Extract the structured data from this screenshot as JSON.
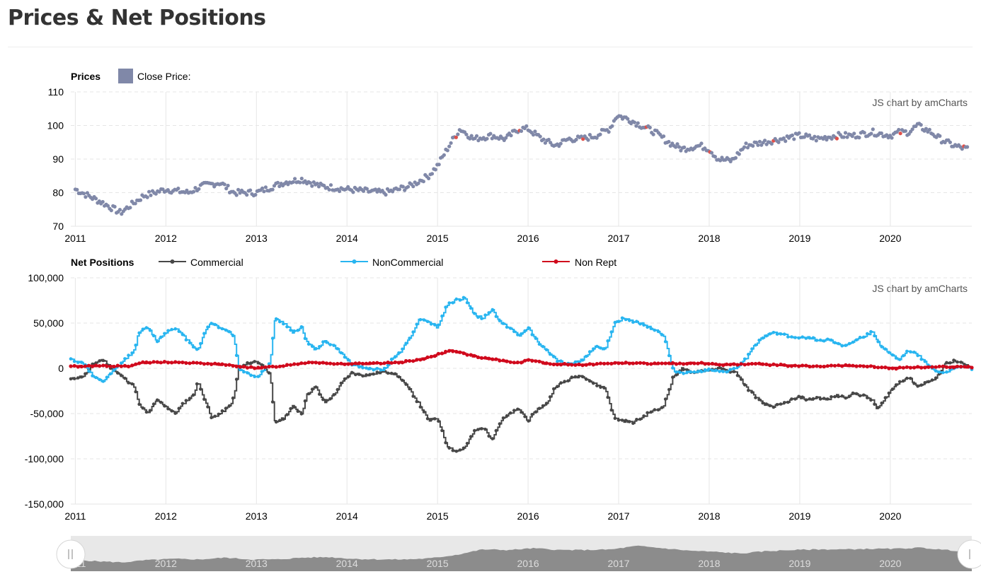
{
  "page": {
    "title": "Prices & Net Positions"
  },
  "credit": "JS chart by amCharts",
  "colors": {
    "price": "#8088a8",
    "price_alt": "#e0504a",
    "commercial": "#474747",
    "noncommercial": "#28b5f0",
    "nonrept": "#d0091c",
    "scroll_fill": "#8c8c8c",
    "scroll_bg": "#e8e8e8"
  },
  "chart_data": [
    {
      "type": "scatter",
      "title": "Prices",
      "legend": {
        "placement": "top-left",
        "entries": [
          "Close Price:"
        ]
      },
      "x_ticks": [
        "2011",
        "2012",
        "2013",
        "2014",
        "2015",
        "2016",
        "2017",
        "2018",
        "2019",
        "2020"
      ],
      "y_ticks": [
        "110",
        "100",
        "90",
        "80",
        "70"
      ],
      "ylim": [
        70,
        110
      ],
      "xlim": [
        2010.95,
        2020.9
      ],
      "grid": true,
      "series": [
        {
          "name": "Close Price:",
          "x": [
            2011.0,
            2011.3,
            2011.5,
            2011.6,
            2011.75,
            2012.0,
            2012.25,
            2012.4,
            2012.6,
            2012.75,
            2013.0,
            2013.1,
            2013.3,
            2013.5,
            2013.7,
            2014.0,
            2014.2,
            2014.4,
            2014.5,
            2014.7,
            2014.9,
            2015.0,
            2015.15,
            2015.25,
            2015.4,
            2015.6,
            2015.75,
            2015.9,
            2016.0,
            2016.15,
            2016.3,
            2016.45,
            2016.6,
            2016.75,
            2016.9,
            2016.98,
            2017.1,
            2017.25,
            2017.4,
            2017.55,
            2017.7,
            2017.9,
            2018.0,
            2018.1,
            2018.25,
            2018.4,
            2018.6,
            2018.8,
            2019.0,
            2019.2,
            2019.4,
            2019.6,
            2019.8,
            2020.0,
            2020.1,
            2020.2,
            2020.3,
            2020.45,
            2020.55,
            2020.7,
            2020.85
          ],
          "y": [
            81,
            77,
            74,
            76,
            79,
            81,
            80,
            82,
            83,
            80,
            80,
            81,
            83,
            84,
            82,
            81,
            80.5,
            80,
            80.5,
            82,
            85,
            88,
            95,
            99,
            96,
            97,
            96,
            99,
            99,
            96,
            94,
            96,
            96,
            97,
            99,
            103,
            102,
            100,
            98,
            95,
            93,
            94,
            93,
            90,
            89.5,
            94,
            95,
            96,
            97,
            96,
            97,
            97,
            98,
            97,
            98,
            98,
            100,
            98,
            96,
            94,
            93
          ]
        }
      ]
    },
    {
      "type": "line",
      "title": "Net Positions",
      "legend": {
        "placement": "top-left",
        "entries": [
          "Commercial",
          "NonCommercial",
          "Non Rept"
        ]
      },
      "x_ticks": [
        "2011",
        "2012",
        "2013",
        "2014",
        "2015",
        "2016",
        "2017",
        "2018",
        "2019",
        "2020"
      ],
      "y_ticks": [
        "100,000",
        "50,000",
        "0",
        "-50,000",
        "-100,000",
        "-150,000"
      ],
      "ylim": [
        -150000,
        100000
      ],
      "xlim": [
        2010.95,
        2020.9
      ],
      "grid": true,
      "series": [
        {
          "name": "Commercial",
          "x": [
            2010.95,
            2011.1,
            2011.2,
            2011.3,
            2011.4,
            2011.5,
            2011.55,
            2011.65,
            2011.7,
            2011.8,
            2011.9,
            2012.0,
            2012.1,
            2012.2,
            2012.3,
            2012.35,
            2012.45,
            2012.5,
            2012.6,
            2012.7,
            2012.75,
            2012.8,
            2012.9,
            2013.0,
            2013.1,
            2013.15,
            2013.2,
            2013.3,
            2013.4,
            2013.5,
            2013.55,
            2013.65,
            2013.75,
            2013.85,
            2013.95,
            2014.05,
            2014.2,
            2014.4,
            2014.5,
            2014.6,
            2014.7,
            2014.8,
            2014.9,
            2015.0,
            2015.1,
            2015.2,
            2015.3,
            2015.4,
            2015.5,
            2015.6,
            2015.7,
            2015.8,
            2015.9,
            2016.0,
            2016.1,
            2016.2,
            2016.3,
            2016.4,
            2016.5,
            2016.6,
            2016.7,
            2016.75,
            2016.85,
            2016.95,
            2017.05,
            2017.15,
            2017.25,
            2017.35,
            2017.45,
            2017.5,
            2017.6,
            2017.7,
            2017.8,
            2017.9,
            2018.0,
            2018.1,
            2018.2,
            2018.3,
            2018.4,
            2018.5,
            2018.6,
            2018.7,
            2018.8,
            2018.9,
            2019.0,
            2019.1,
            2019.2,
            2019.3,
            2019.4,
            2019.5,
            2019.6,
            2019.7,
            2019.8,
            2019.85,
            2019.9,
            2020.0,
            2020.1,
            2020.2,
            2020.3,
            2020.4,
            2020.5,
            2020.6,
            2020.7,
            2020.8,
            2020.9
          ],
          "y": [
            -12000,
            -8000,
            5000,
            10000,
            0,
            -8000,
            -12000,
            -20000,
            -40000,
            -50000,
            -35000,
            -42000,
            -50000,
            -38000,
            -30000,
            -15000,
            -40000,
            -55000,
            -50000,
            -42000,
            -32000,
            0,
            5000,
            8000,
            0,
            -8000,
            -60000,
            -55000,
            -42000,
            -50000,
            -30000,
            -20000,
            -38000,
            -30000,
            -15000,
            -5000,
            -8000,
            -4000,
            -5000,
            -12000,
            -25000,
            -40000,
            -58000,
            -55000,
            -85000,
            -92000,
            -88000,
            -70000,
            -65000,
            -78000,
            -58000,
            -50000,
            -45000,
            -58000,
            -45000,
            -40000,
            -20000,
            -15000,
            -10000,
            -8000,
            -15000,
            -18000,
            -22000,
            -55000,
            -58000,
            -60000,
            -55000,
            -48000,
            -45000,
            -40000,
            -10000,
            0,
            -5000,
            -3000,
            -2000,
            0,
            -3000,
            -5000,
            -20000,
            -30000,
            -40000,
            -42000,
            -40000,
            -35000,
            -32000,
            -35000,
            -32000,
            -35000,
            -30000,
            -32000,
            -28000,
            -30000,
            -35000,
            -45000,
            -40000,
            -25000,
            -15000,
            -10000,
            -20000,
            -15000,
            -12000,
            5000,
            8000,
            5000,
            0
          ]
        },
        {
          "name": "NonCommercial",
          "x": [
            2010.95,
            2011.1,
            2011.2,
            2011.3,
            2011.4,
            2011.5,
            2011.55,
            2011.65,
            2011.7,
            2011.8,
            2011.9,
            2012.0,
            2012.1,
            2012.2,
            2012.3,
            2012.35,
            2012.45,
            2012.5,
            2012.6,
            2012.7,
            2012.75,
            2012.8,
            2012.9,
            2013.0,
            2013.1,
            2013.15,
            2013.2,
            2013.3,
            2013.4,
            2013.5,
            2013.55,
            2013.65,
            2013.75,
            2013.85,
            2013.95,
            2014.05,
            2014.2,
            2014.4,
            2014.5,
            2014.6,
            2014.7,
            2014.8,
            2014.9,
            2015.0,
            2015.1,
            2015.2,
            2015.3,
            2015.4,
            2015.5,
            2015.6,
            2015.7,
            2015.8,
            2015.9,
            2016.0,
            2016.1,
            2016.2,
            2016.3,
            2016.4,
            2016.5,
            2016.6,
            2016.7,
            2016.75,
            2016.85,
            2016.95,
            2017.05,
            2017.15,
            2017.25,
            2017.35,
            2017.45,
            2017.5,
            2017.6,
            2017.7,
            2017.8,
            2017.9,
            2018.0,
            2018.1,
            2018.2,
            2018.3,
            2018.4,
            2018.5,
            2018.6,
            2018.7,
            2018.8,
            2018.9,
            2019.0,
            2019.1,
            2019.2,
            2019.3,
            2019.4,
            2019.5,
            2019.6,
            2019.7,
            2019.8,
            2019.85,
            2019.9,
            2020.0,
            2020.1,
            2020.2,
            2020.3,
            2020.4,
            2020.5,
            2020.6,
            2020.7,
            2020.8,
            2020.9
          ],
          "y": [
            10000,
            5000,
            -10000,
            -15000,
            -5000,
            5000,
            10000,
            20000,
            40000,
            45000,
            30000,
            40000,
            45000,
            35000,
            25000,
            20000,
            45000,
            50000,
            45000,
            40000,
            35000,
            0,
            -5000,
            -10000,
            0,
            5000,
            55000,
            50000,
            40000,
            45000,
            30000,
            20000,
            30000,
            25000,
            15000,
            5000,
            0,
            -2000,
            10000,
            20000,
            35000,
            55000,
            52000,
            45000,
            70000,
            75000,
            78000,
            60000,
            55000,
            65000,
            50000,
            45000,
            35000,
            45000,
            30000,
            20000,
            10000,
            5000,
            5000,
            10000,
            20000,
            25000,
            20000,
            50000,
            55000,
            52000,
            50000,
            45000,
            40000,
            35000,
            -2000,
            -5000,
            -4000,
            -3000,
            -2000,
            -4000,
            -3000,
            0,
            10000,
            25000,
            35000,
            40000,
            38000,
            35000,
            33000,
            35000,
            30000,
            32000,
            28000,
            25000,
            30000,
            35000,
            40000,
            30000,
            25000,
            15000,
            10000,
            20000,
            15000,
            5000,
            -3000,
            -5000,
            0,
            2000,
            0
          ]
        },
        {
          "name": "Non Rept",
          "x": [
            2010.95,
            2011.3,
            2011.6,
            2011.7,
            2012.0,
            2012.5,
            2012.75,
            2013.0,
            2013.3,
            2013.6,
            2013.9,
            2014.2,
            2014.5,
            2014.7,
            2014.9,
            2015.0,
            2015.15,
            2015.3,
            2015.45,
            2015.6,
            2015.9,
            2016.0,
            2016.2,
            2016.6,
            2017.0,
            2017.5,
            2017.9,
            2018.1,
            2018.5,
            2018.9,
            2019.2,
            2019.5,
            2019.8,
            2020.0,
            2020.3,
            2020.6,
            2020.9
          ],
          "y": [
            2000,
            3000,
            2000,
            6000,
            7000,
            5000,
            3000,
            0,
            3000,
            7000,
            5000,
            5000,
            6000,
            8000,
            12000,
            15000,
            20000,
            16000,
            12000,
            10000,
            6000,
            10000,
            5000,
            4000,
            6000,
            5000,
            6000,
            4000,
            5000,
            3000,
            2000,
            3000,
            2000,
            0,
            1000,
            2000,
            1000
          ]
        }
      ]
    }
  ],
  "scrollbar": {
    "x_ticks": [
      "2011",
      "2012",
      "2013",
      "2014",
      "2015",
      "2016",
      "2017",
      "2018",
      "2019",
      "2020"
    ],
    "values": [
      80,
      77,
      75,
      79,
      81,
      80,
      83,
      80,
      80,
      83,
      84,
      81,
      80,
      80,
      82,
      88,
      97,
      96,
      99,
      96,
      96,
      97,
      103,
      99,
      95,
      93,
      90,
      94,
      96,
      97,
      97,
      98,
      98,
      100,
      96,
      93
    ]
  }
}
